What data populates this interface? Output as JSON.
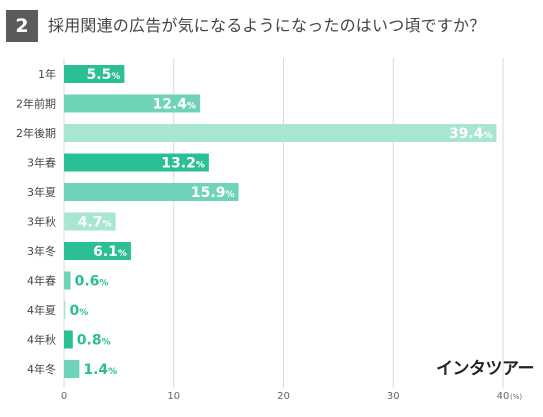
{
  "header": {
    "number": "2",
    "title": "採用関連の広告が気になるようになったのはいつ頃ですか？"
  },
  "brand": "インタツアー",
  "colors": {
    "dark": "#2bbf95",
    "medium": "#6fd3b8",
    "light": "#a9e5d3",
    "grid": "#d9d9d9",
    "label": "#444444",
    "outside_value": "#2bbf95"
  },
  "chart_data": {
    "type": "bar",
    "orientation": "horizontal",
    "categories": [
      "1年",
      "2年前期",
      "2年後期",
      "3年春",
      "3年夏",
      "3年秋",
      "3年冬",
      "4年春",
      "4年夏",
      "4年秋",
      "4年冬"
    ],
    "values": [
      5.5,
      12.4,
      39.4,
      13.2,
      15.9,
      4.7,
      6.1,
      0.6,
      0,
      0.8,
      1.4
    ],
    "value_suffix": "%",
    "bar_colors": [
      "dark",
      "medium",
      "light",
      "dark",
      "medium",
      "light",
      "dark",
      "medium",
      "light",
      "dark",
      "medium"
    ],
    "xlim": [
      0,
      40
    ],
    "xticks": [
      0,
      10,
      20,
      30,
      40
    ],
    "xunit": "(%)",
    "grid": true
  }
}
